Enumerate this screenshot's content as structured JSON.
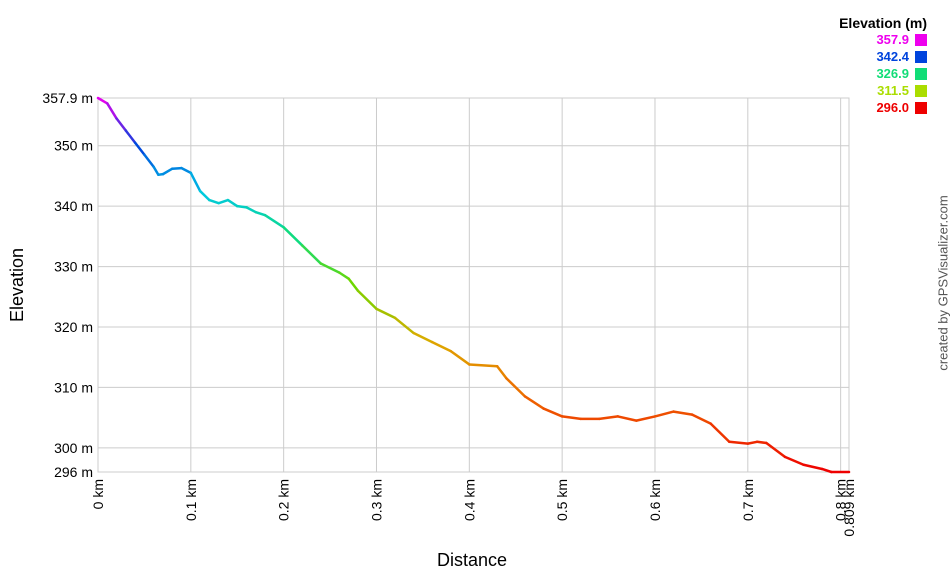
{
  "chart_data": {
    "type": "line",
    "xlabel": "Distance",
    "ylabel": "Elevation",
    "xlim": [
      0,
      0.809
    ],
    "ylim": [
      296.0,
      357.9
    ],
    "x_ticks": [
      {
        "v": 0,
        "label": "0 km"
      },
      {
        "v": 0.1,
        "label": "0.1 km"
      },
      {
        "v": 0.2,
        "label": "0.2 km"
      },
      {
        "v": 0.3,
        "label": "0.3 km"
      },
      {
        "v": 0.4,
        "label": "0.4 km"
      },
      {
        "v": 0.5,
        "label": "0.5 km"
      },
      {
        "v": 0.6,
        "label": "0.6 km"
      },
      {
        "v": 0.7,
        "label": "0.7 km"
      },
      {
        "v": 0.8,
        "label": "0.8 km"
      },
      {
        "v": 0.809,
        "label": "0.809 km"
      }
    ],
    "y_ticks": [
      {
        "v": 296.0,
        "label": "296 m"
      },
      {
        "v": 300,
        "label": "300 m"
      },
      {
        "v": 310,
        "label": "310 m"
      },
      {
        "v": 320,
        "label": "320 m"
      },
      {
        "v": 330,
        "label": "330 m"
      },
      {
        "v": 340,
        "label": "340 m"
      },
      {
        "v": 350,
        "label": "350 m"
      },
      {
        "v": 357.9,
        "label": "357.9 m"
      }
    ],
    "grid": true,
    "legend_position": "top-right",
    "series": [
      {
        "points": [
          [
            0.0,
            357.9
          ],
          [
            0.01,
            357.0
          ],
          [
            0.02,
            354.5
          ],
          [
            0.03,
            352.5
          ],
          [
            0.04,
            350.5
          ],
          [
            0.05,
            348.5
          ],
          [
            0.06,
            346.5
          ],
          [
            0.065,
            345.2
          ],
          [
            0.07,
            345.3
          ],
          [
            0.08,
            346.2
          ],
          [
            0.09,
            346.3
          ],
          [
            0.1,
            345.5
          ],
          [
            0.11,
            342.5
          ],
          [
            0.12,
            341.0
          ],
          [
            0.13,
            340.5
          ],
          [
            0.14,
            341.0
          ],
          [
            0.15,
            340.0
          ],
          [
            0.16,
            339.8
          ],
          [
            0.17,
            339.0
          ],
          [
            0.18,
            338.5
          ],
          [
            0.2,
            336.5
          ],
          [
            0.22,
            333.5
          ],
          [
            0.24,
            330.5
          ],
          [
            0.26,
            329.0
          ],
          [
            0.27,
            328.0
          ],
          [
            0.28,
            326.0
          ],
          [
            0.3,
            323.0
          ],
          [
            0.32,
            321.5
          ],
          [
            0.34,
            319.0
          ],
          [
            0.36,
            317.5
          ],
          [
            0.38,
            316.0
          ],
          [
            0.4,
            313.8
          ],
          [
            0.43,
            313.5
          ],
          [
            0.44,
            311.5
          ],
          [
            0.46,
            308.5
          ],
          [
            0.48,
            306.5
          ],
          [
            0.5,
            305.2
          ],
          [
            0.52,
            304.8
          ],
          [
            0.54,
            304.8
          ],
          [
            0.56,
            305.2
          ],
          [
            0.58,
            304.5
          ],
          [
            0.6,
            305.2
          ],
          [
            0.62,
            306.0
          ],
          [
            0.64,
            305.5
          ],
          [
            0.66,
            304.0
          ],
          [
            0.68,
            301.0
          ],
          [
            0.7,
            300.7
          ],
          [
            0.71,
            301.0
          ],
          [
            0.72,
            300.8
          ],
          [
            0.74,
            298.5
          ],
          [
            0.76,
            297.2
          ],
          [
            0.78,
            296.5
          ],
          [
            0.79,
            296.0
          ],
          [
            0.809,
            296.0
          ]
        ]
      }
    ]
  },
  "legend": {
    "title": "Elevation (m)",
    "items": [
      {
        "label": "357.9",
        "color": "#ee00ee"
      },
      {
        "label": "342.4",
        "color": "#0044dd"
      },
      {
        "label": "326.9",
        "color": "#11dd77"
      },
      {
        "label": "311.5",
        "color": "#aadd00"
      },
      {
        "label": "296.0",
        "color": "#ee0000"
      }
    ]
  },
  "credit": "created by GPSVisualizer.com"
}
